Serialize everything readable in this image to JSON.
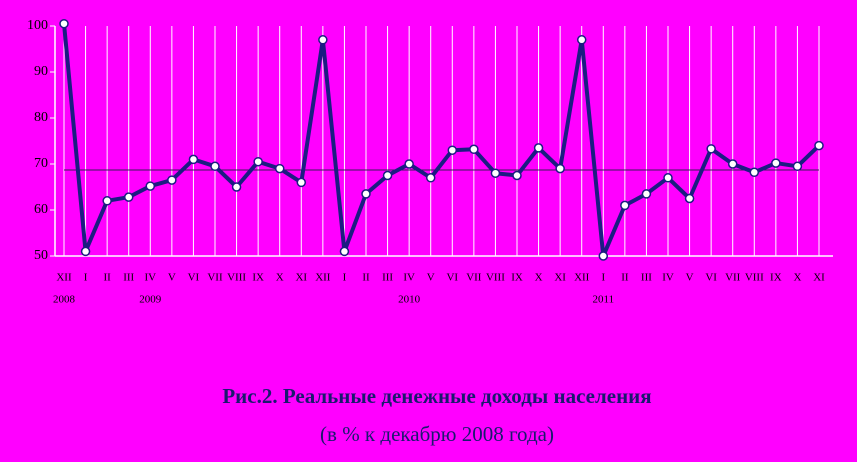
{
  "chart_data": {
    "type": "line",
    "title": "Рис.2. Реальные денежные доходы населения",
    "subtitle": "(в % к декабрю 2008 года)",
    "categories": [
      "XII",
      "I",
      "II",
      "III",
      "IV",
      "V",
      "VI",
      "VII",
      "VIII",
      "IX",
      "X",
      "XI",
      "XII",
      "I",
      "II",
      "III",
      "IV",
      "V",
      "VI",
      "VII",
      "VIII",
      "IX",
      "X",
      "XI",
      "XII",
      "I",
      "II",
      "III",
      "IV",
      "V",
      "VI",
      "VII",
      "VIII",
      "IX",
      "X",
      "XI"
    ],
    "year_labels": [
      {
        "category_index": 0,
        "label": "2008"
      },
      {
        "category_index": 4,
        "label": "2009"
      },
      {
        "category_index": 16,
        "label": "2010"
      },
      {
        "category_index": 25,
        "label": "2011"
      }
    ],
    "series": [
      {
        "color": "#1c1c82",
        "values": [
          100.5,
          51,
          62,
          62.8,
          65.2,
          66.5,
          71,
          69.5,
          65,
          70.5,
          69,
          66,
          97,
          51,
          63.5,
          67.5,
          70,
          67,
          73,
          73.2,
          68,
          67.5,
          73.5,
          69,
          97,
          50,
          61,
          63.5,
          67,
          62.5,
          73.3,
          70,
          68.2,
          70.2,
          69.5,
          74
        ]
      }
    ],
    "reference_line": 68.7,
    "ylim": [
      50,
      100
    ],
    "yticks": [
      50,
      60,
      70,
      80,
      90,
      100
    ],
    "grid": true
  }
}
